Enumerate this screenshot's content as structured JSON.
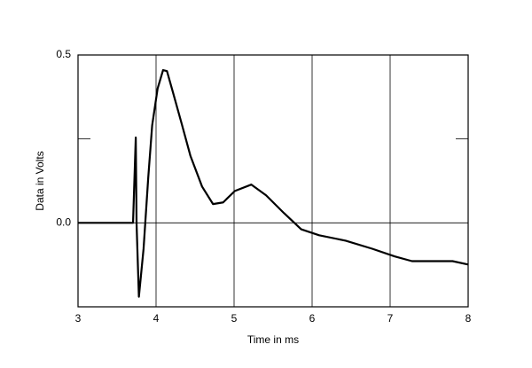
{
  "chart_data": {
    "type": "line",
    "x_label": "Time in ms",
    "y_label": "Data in Volts",
    "x": [
      3.0,
      3.705,
      3.74,
      3.75,
      3.78,
      3.84,
      3.9,
      3.95,
      4.02,
      4.09,
      4.14,
      4.22,
      4.33,
      4.44,
      4.59,
      4.73,
      4.86,
      5.01,
      5.22,
      5.41,
      5.64,
      5.86,
      6.09,
      6.43,
      6.77,
      7.06,
      7.28,
      7.57,
      7.8,
      8.0
    ],
    "values": [
      0,
      0,
      0.254,
      0.0,
      -0.22,
      -0.077,
      0.135,
      0.29,
      0.4,
      0.455,
      0.452,
      0.386,
      0.294,
      0.2,
      0.108,
      0.056,
      0.061,
      0.095,
      0.114,
      0.082,
      0.029,
      -0.019,
      -0.037,
      -0.053,
      -0.077,
      -0.1,
      -0.114,
      -0.114,
      -0.114,
      -0.124
    ],
    "color": "#000000",
    "xlim": [
      3,
      8
    ],
    "xticks": [
      3,
      4,
      5,
      6,
      7,
      8
    ],
    "ylim": [
      -0.25,
      0.5
    ],
    "yticks": [
      {
        "value": 0,
        "label": "0.0"
      },
      {
        "value": 0.25,
        "label": null
      },
      0.5
    ],
    "grid": true
  }
}
